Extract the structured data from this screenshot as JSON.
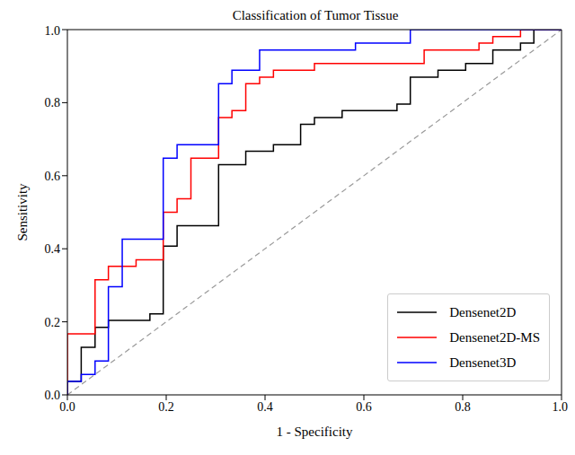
{
  "chart_data": {
    "type": "line",
    "title": "Classification of Tumor Tissue",
    "x_label": "1 - Specificity",
    "y_label": "Sensitivity",
    "xlim": [
      0,
      1
    ],
    "ylim": [
      0,
      1
    ],
    "xticks": [
      {
        "value": 0,
        "label": "0.0"
      },
      {
        "value": 0.2,
        "label": "0.2"
      },
      {
        "value": 0.4,
        "label": "0.4"
      },
      {
        "value": 0.6,
        "label": "0.6"
      },
      {
        "value": 0.8,
        "label": "0.8"
      },
      {
        "value": 1,
        "label": "1.0"
      }
    ],
    "yticks": [
      {
        "value": 0,
        "label": "0.0"
      },
      {
        "value": 0.2,
        "label": "0.2"
      },
      {
        "value": 0.4,
        "label": "0.4"
      },
      {
        "value": 0.6,
        "label": "0.6"
      },
      {
        "value": 0.8,
        "label": "0.8"
      },
      {
        "value": 1,
        "label": "1.0"
      }
    ],
    "grid": false,
    "legend": "lower right",
    "diagonal": {
      "x": [
        0,
        1
      ],
      "values": [
        0,
        1
      ],
      "color": "#999999",
      "line_style": "dashed"
    },
    "series": [
      {
        "name": "Densenet2D",
        "color": "#000000",
        "line_style": "solid",
        "x": [
          0,
          0,
          0.028,
          0.028,
          0.056,
          0.056,
          0.083,
          0.083,
          0.167,
          0.167,
          0.194,
          0.194,
          0.222,
          0.222,
          0.306,
          0.306,
          0.361,
          0.361,
          0.417,
          0.417,
          0.472,
          0.472,
          0.5,
          0.5,
          0.556,
          0.556,
          0.667,
          0.667,
          0.694,
          0.694,
          0.75,
          0.75,
          0.806,
          0.806,
          0.861,
          0.861,
          0.917,
          0.917,
          0.944,
          0.944,
          1
        ],
        "values": [
          0,
          0.037,
          0.037,
          0.13,
          0.13,
          0.185,
          0.185,
          0.204,
          0.204,
          0.222,
          0.222,
          0.407,
          0.407,
          0.463,
          0.463,
          0.63,
          0.63,
          0.667,
          0.667,
          0.685,
          0.685,
          0.741,
          0.741,
          0.759,
          0.759,
          0.778,
          0.778,
          0.796,
          0.796,
          0.87,
          0.87,
          0.889,
          0.889,
          0.907,
          0.907,
          0.944,
          0.944,
          0.963,
          0.963,
          1,
          1
        ]
      },
      {
        "name": "Densenet2D-MS",
        "color": "#ff0000",
        "line_style": "solid",
        "x": [
          0,
          0,
          0.056,
          0.056,
          0.083,
          0.083,
          0.139,
          0.139,
          0.194,
          0.194,
          0.222,
          0.222,
          0.25,
          0.25,
          0.306,
          0.306,
          0.333,
          0.333,
          0.361,
          0.361,
          0.389,
          0.389,
          0.417,
          0.417,
          0.5,
          0.5,
          0.722,
          0.722,
          0.833,
          0.833,
          0.861,
          0.861,
          0.917,
          0.917,
          1
        ],
        "values": [
          0,
          0.167,
          0.167,
          0.315,
          0.315,
          0.352,
          0.352,
          0.37,
          0.37,
          0.5,
          0.5,
          0.537,
          0.537,
          0.648,
          0.648,
          0.759,
          0.759,
          0.778,
          0.778,
          0.852,
          0.852,
          0.87,
          0.87,
          0.889,
          0.889,
          0.907,
          0.907,
          0.944,
          0.944,
          0.963,
          0.963,
          0.981,
          0.981,
          1,
          1
        ]
      },
      {
        "name": "Densenet3D",
        "color": "#0000ff",
        "line_style": "solid",
        "x": [
          0,
          0,
          0.028,
          0.028,
          0.056,
          0.056,
          0.083,
          0.083,
          0.111,
          0.111,
          0.194,
          0.194,
          0.222,
          0.222,
          0.306,
          0.306,
          0.333,
          0.333,
          0.389,
          0.389,
          0.583,
          0.583,
          0.694,
          0.694,
          1
        ],
        "values": [
          0,
          0.037,
          0.037,
          0.056,
          0.056,
          0.093,
          0.093,
          0.296,
          0.296,
          0.426,
          0.426,
          0.648,
          0.648,
          0.685,
          0.685,
          0.852,
          0.852,
          0.889,
          0.889,
          0.944,
          0.944,
          0.963,
          0.963,
          1,
          1
        ]
      }
    ]
  }
}
